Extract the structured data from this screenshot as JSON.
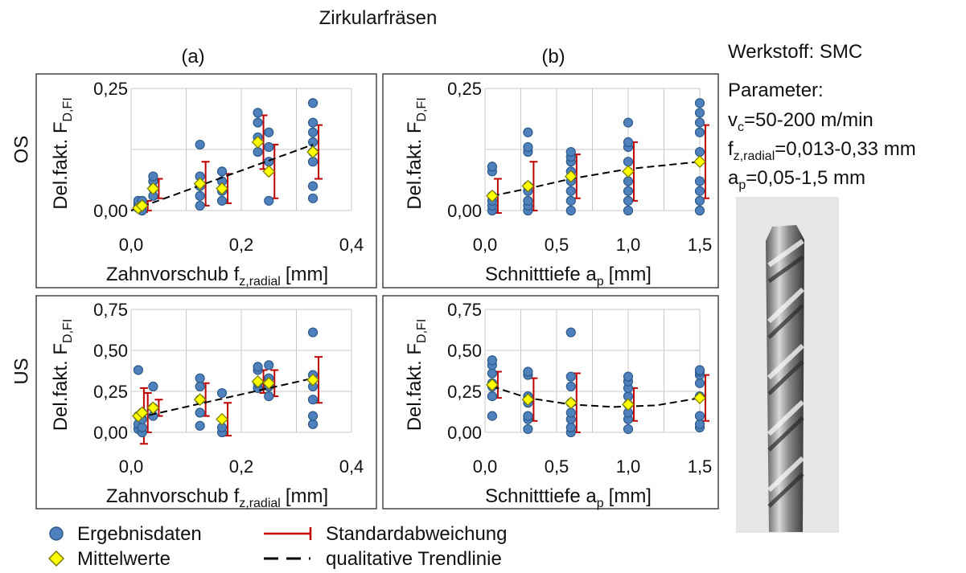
{
  "title": "Zirkularfräsen",
  "column_labels": [
    "(a)",
    "(b)"
  ],
  "row_labels": [
    "OS",
    "US"
  ],
  "info": {
    "material": "Werkstoff: SMC",
    "parameter": "Parameter:",
    "vc": [
      "v",
      "c",
      "=50-200 m/min"
    ],
    "fz": [
      "f",
      "z,radial",
      "=0,013-0,33 mm"
    ],
    "ap": [
      "a",
      "p",
      "=0,05-1,5 mm"
    ]
  },
  "legend": {
    "points": "Ergebnisdaten",
    "means": "Mittelwerte",
    "error": "Standardabweichung",
    "trend": "qualitative Trendlinie"
  },
  "chart_data": [
    {
      "type": "scatter",
      "grid": true,
      "y_label": [
        "Del.fakt. F",
        "D,FI"
      ],
      "x_label": [
        "Zahnvorschub f",
        "z,radial",
        "[mm]"
      ],
      "xlim": [
        0,
        0.4
      ],
      "ylim": [
        0,
        0.25
      ],
      "xticks": [
        {
          "value": 0,
          "label": "0,0"
        },
        {
          "value": 0.2,
          "label": "0,2"
        },
        {
          "value": 0.4,
          "label": "0,4"
        }
      ],
      "xgrid": [
        0.1,
        0.3
      ],
      "yticks": [
        {
          "value": 0,
          "label": "0,00"
        },
        {
          "value": 0.25,
          "label": "0,25"
        }
      ],
      "ygrid": [
        0.125
      ],
      "points": {
        "color": "#4f81bd",
        "x": [
          0.013,
          0.013,
          0.013,
          0.013,
          0.02,
          0.02,
          0.02,
          0.04,
          0.04,
          0.04,
          0.04,
          0.125,
          0.125,
          0.125,
          0.125,
          0.125,
          0.165,
          0.165,
          0.165,
          0.165,
          0.23,
          0.23,
          0.23,
          0.23,
          0.25,
          0.25,
          0.25,
          0.25,
          0.33,
          0.33,
          0.33,
          0.33,
          0.33,
          0.33,
          0.33,
          0.33
        ],
        "values": [
          0.005,
          0.01,
          0.015,
          0.02,
          0.0,
          0.01,
          0.02,
          0.03,
          0.045,
          0.06,
          0.07,
          0.01,
          0.03,
          0.05,
          0.07,
          0.135,
          0.02,
          0.04,
          0.06,
          0.08,
          0.12,
          0.15,
          0.18,
          0.2,
          0.02,
          0.1,
          0.13,
          0.16,
          0.025,
          0.05,
          0.1,
          0.12,
          0.14,
          0.16,
          0.18,
          0.22
        ]
      },
      "means": {
        "color": "#ffff00",
        "error_color": "#c00000",
        "x": [
          0.013,
          0.02,
          0.04,
          0.125,
          0.165,
          0.23,
          0.25,
          0.33
        ],
        "values": [
          0.005,
          0.01,
          0.045,
          0.055,
          0.045,
          0.14,
          0.08,
          0.12
        ],
        "errors": [
          0.008,
          0.01,
          0.02,
          0.045,
          0.03,
          0.055,
          0.055,
          0.055
        ]
      },
      "trend": {
        "color": "#000000",
        "x": [
          0,
          0.33
        ],
        "values": [
          0,
          0.135
        ]
      }
    },
    {
      "type": "scatter",
      "grid": true,
      "y_label": [
        "Del.fakt. F",
        "D,FI"
      ],
      "x_label": [
        "Schnitttiefe a",
        "p",
        "[mm]"
      ],
      "xlim": [
        0,
        1.5
      ],
      "ylim": [
        0,
        0.25
      ],
      "xticks": [
        {
          "value": 0,
          "label": "0,0"
        },
        {
          "value": 0.5,
          "label": "0,5"
        },
        {
          "value": 1,
          "label": "1,0"
        },
        {
          "value": 1.5,
          "label": "1,5"
        }
      ],
      "xgrid": [
        0.25,
        0.75,
        1.25
      ],
      "yticks": [
        {
          "value": 0,
          "label": "0,00"
        },
        {
          "value": 0.25,
          "label": "0,25"
        }
      ],
      "ygrid": [
        0.125
      ],
      "points": {
        "color": "#4f81bd",
        "x": [
          0.05,
          0.05,
          0.05,
          0.05,
          0.05,
          0.05,
          0.3,
          0.3,
          0.3,
          0.3,
          0.3,
          0.3,
          0.3,
          0.3,
          0.6,
          0.6,
          0.6,
          0.6,
          0.6,
          0.6,
          0.6,
          0.6,
          1,
          1,
          1,
          1,
          1,
          1,
          1,
          1,
          1.5,
          1.5,
          1.5,
          1.5,
          1.5,
          1.5,
          1.5,
          1.5,
          1.5
        ],
        "values": [
          0.0,
          0.01,
          0.02,
          0.03,
          0.08,
          0.09,
          0.0,
          0.01,
          0.02,
          0.04,
          0.05,
          0.12,
          0.13,
          0.16,
          0.0,
          0.02,
          0.04,
          0.06,
          0.08,
          0.1,
          0.11,
          0.12,
          0.0,
          0.02,
          0.04,
          0.06,
          0.1,
          0.13,
          0.14,
          0.18,
          0.0,
          0.02,
          0.04,
          0.06,
          0.12,
          0.16,
          0.18,
          0.2,
          0.22
        ]
      },
      "means": {
        "color": "#ffff00",
        "error_color": "#c00000",
        "x": [
          0.05,
          0.3,
          0.6,
          1,
          1.5
        ],
        "values": [
          0.03,
          0.05,
          0.07,
          0.08,
          0.1
        ],
        "errors": [
          0.035,
          0.05,
          0.045,
          0.06,
          0.075
        ]
      },
      "trend": {
        "color": "#000000",
        "x": [
          0.05,
          0.3,
          0.6,
          1,
          1.5
        ],
        "values": [
          0.03,
          0.045,
          0.065,
          0.085,
          0.1
        ]
      }
    },
    {
      "type": "scatter",
      "grid": true,
      "y_label": [
        "Del.fakt. F",
        "D,FI"
      ],
      "x_label": [
        "Zahnvorschub f",
        "z,radial",
        "[mm]"
      ],
      "xlim": [
        0,
        0.4
      ],
      "ylim": [
        0,
        0.75
      ],
      "xticks": [
        {
          "value": 0,
          "label": "0,0"
        },
        {
          "value": 0.2,
          "label": "0,2"
        },
        {
          "value": 0.4,
          "label": "0,4"
        }
      ],
      "xgrid": [
        0.1,
        0.3
      ],
      "yticks": [
        {
          "value": 0,
          "label": "0,00"
        },
        {
          "value": 0.25,
          "label": "0,25"
        },
        {
          "value": 0.5,
          "label": "0,50"
        },
        {
          "value": 0.75,
          "label": "0,75"
        }
      ],
      "ygrid": [],
      "points": {
        "color": "#4f81bd",
        "x": [
          0.013,
          0.013,
          0.013,
          0.013,
          0.02,
          0.02,
          0.02,
          0.02,
          0.04,
          0.04,
          0.04,
          0.125,
          0.125,
          0.125,
          0.125,
          0.125,
          0.165,
          0.165,
          0.165,
          0.23,
          0.23,
          0.23,
          0.23,
          0.25,
          0.25,
          0.25,
          0.25,
          0.33,
          0.33,
          0.33,
          0.33,
          0.33,
          0.33
        ],
        "values": [
          0.02,
          0.05,
          0.1,
          0.38,
          0.0,
          0.03,
          0.08,
          0.12,
          0.1,
          0.15,
          0.28,
          0.04,
          0.12,
          0.2,
          0.28,
          0.33,
          0.0,
          0.03,
          0.24,
          0.27,
          0.3,
          0.38,
          0.4,
          0.22,
          0.28,
          0.33,
          0.41,
          0.05,
          0.1,
          0.2,
          0.28,
          0.35,
          0.61
        ]
      },
      "means": {
        "color": "#ffff00",
        "error_color": "#c00000",
        "x": [
          0.013,
          0.02,
          0.04,
          0.125,
          0.165,
          0.23,
          0.25,
          0.33
        ],
        "values": [
          0.1,
          0.12,
          0.15,
          0.2,
          0.08,
          0.31,
          0.3,
          0.32
        ],
        "errors": [
          0.17,
          0.12,
          0.05,
          0.1,
          0.1,
          0.07,
          0.08,
          0.14
        ]
      },
      "trend": {
        "color": "#000000",
        "x": [
          0.013,
          0.33
        ],
        "values": [
          0.09,
          0.33
        ]
      }
    },
    {
      "type": "scatter",
      "grid": true,
      "y_label": [
        "Del.fakt. F",
        "D,FI"
      ],
      "x_label": [
        "Schnitttiefe a",
        "p",
        "[mm]"
      ],
      "xlim": [
        0,
        1.5
      ],
      "ylim": [
        0,
        0.75
      ],
      "xticks": [
        {
          "value": 0,
          "label": "0,0"
        },
        {
          "value": 0.5,
          "label": "0,5"
        },
        {
          "value": 1,
          "label": "1,0"
        },
        {
          "value": 1.5,
          "label": "1,5"
        }
      ],
      "xgrid": [
        0.25,
        0.75,
        1.25
      ],
      "yticks": [
        {
          "value": 0,
          "label": "0,00"
        },
        {
          "value": 0.25,
          "label": "0,25"
        },
        {
          "value": 0.5,
          "label": "0,50"
        },
        {
          "value": 0.75,
          "label": "0,75"
        }
      ],
      "ygrid": [],
      "points": {
        "color": "#4f81bd",
        "x": [
          0.05,
          0.05,
          0.05,
          0.05,
          0.05,
          0.05,
          0.05,
          0.3,
          0.3,
          0.3,
          0.3,
          0.3,
          0.3,
          0.3,
          0.6,
          0.6,
          0.6,
          0.6,
          0.6,
          0.6,
          0.6,
          0.6,
          1,
          1,
          1,
          1,
          1,
          1,
          1,
          1,
          1.5,
          1.5,
          1.5,
          1.5,
          1.5,
          1.5,
          1.5,
          1.5
        ],
        "values": [
          0.1,
          0.22,
          0.28,
          0.3,
          0.36,
          0.41,
          0.44,
          0.02,
          0.08,
          0.1,
          0.18,
          0.22,
          0.35,
          0.37,
          0.0,
          0.03,
          0.08,
          0.12,
          0.18,
          0.28,
          0.34,
          0.61,
          0.02,
          0.08,
          0.12,
          0.17,
          0.22,
          0.27,
          0.31,
          0.34,
          0.03,
          0.05,
          0.1,
          0.22,
          0.3,
          0.35,
          0.37,
          0.38
        ]
      },
      "means": {
        "color": "#ffff00",
        "error_color": "#c00000",
        "x": [
          0.05,
          0.3,
          0.6,
          1,
          1.5
        ],
        "values": [
          0.29,
          0.2,
          0.18,
          0.17,
          0.21
        ],
        "errors": [
          0.08,
          0.13,
          0.18,
          0.1,
          0.14
        ]
      },
      "trend": {
        "color": "#000000",
        "x": [
          0.05,
          0.3,
          0.6,
          0.9,
          1.2,
          1.5
        ],
        "values": [
          0.28,
          0.21,
          0.17,
          0.155,
          0.165,
          0.21
        ]
      }
    }
  ]
}
